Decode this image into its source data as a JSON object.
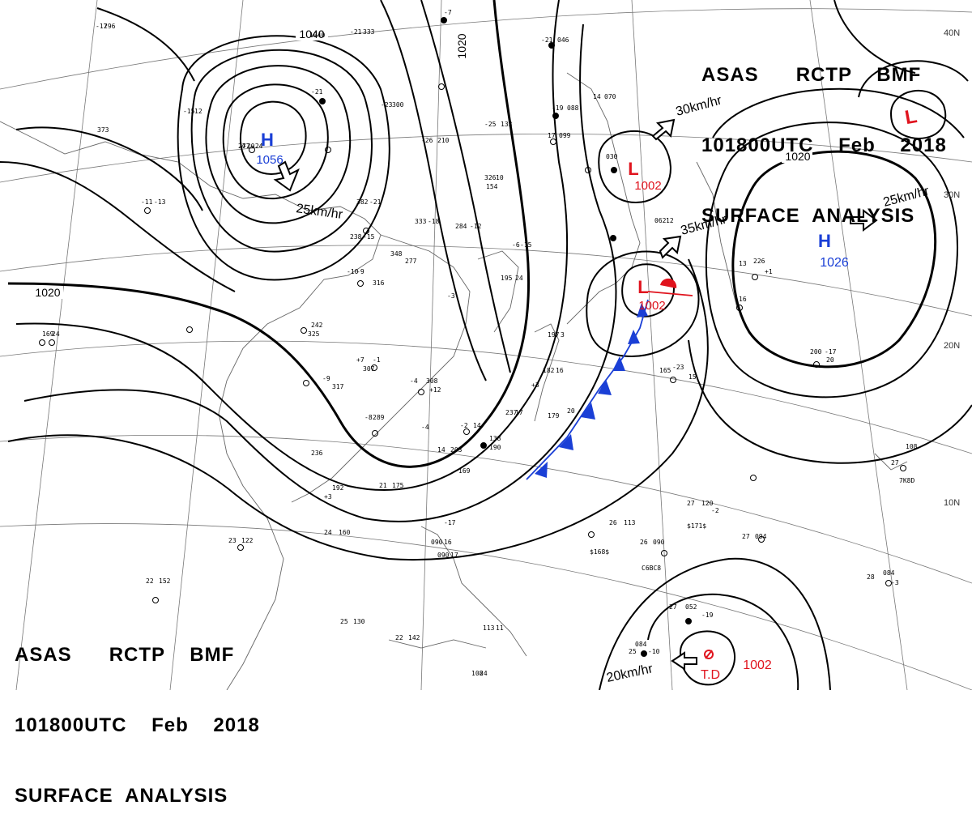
{
  "header_top_right": {
    "line1": "ASAS      RCTP    BMF",
    "line2": "101800UTC    Feb    2018",
    "line3": "SURFACE  ANALYSIS"
  },
  "header_bottom_left": {
    "line1": "ASAS      RCTP    BMF",
    "line2": "101800UTC    Feb    2018",
    "line3": "SURFACE  ANALYSIS"
  },
  "latitude_labels": [
    "40N",
    "30N",
    "20N",
    "10N"
  ],
  "isobar_labels": [
    "1040",
    "1020",
    "1020",
    "1020"
  ],
  "pressure_centers": [
    {
      "type_letter": "H",
      "value": "1056",
      "color": "#1a3fd6"
    },
    {
      "type_letter": "L",
      "value": "1002",
      "color": "#e0141e"
    },
    {
      "type_letter": "L",
      "value": "1002",
      "color": "#e0141e"
    },
    {
      "type_letter": "H",
      "value": "1026",
      "color": "#1a3fd6"
    },
    {
      "type_letter": "L",
      "value": "",
      "color": "#e0141e"
    }
  ],
  "tropical_depression": {
    "label": "T.D",
    "value": "1002",
    "color": "#e0141e"
  },
  "motion_labels": [
    "25km/hr",
    "30km/hr",
    "35km/hr",
    "25km/hr",
    "20km/hr"
  ],
  "station_values": [
    "-17",
    "296",
    "-21",
    "333",
    "1040",
    "-7",
    "-21",
    "046",
    "-21",
    "-23",
    "300",
    "-25",
    "133",
    "-19",
    "088",
    "14",
    "070",
    "-26",
    "210",
    "17",
    "099",
    "-15",
    "12",
    "373",
    "277",
    "-20",
    "4",
    "-24",
    "326",
    "10",
    "154",
    "-11",
    "-13",
    "382",
    "-21",
    "333",
    "-18",
    "284",
    "-12",
    "238",
    "-15",
    "348",
    "277",
    "-10",
    "-9",
    "316",
    "-6",
    "-15",
    "195",
    "24",
    "-3",
    "242",
    "325",
    "+7",
    "-1",
    "307",
    "-9",
    "317",
    "-4",
    "308",
    "+12",
    "-8",
    "289",
    "-4",
    "-2",
    "14",
    "237",
    "17",
    "179",
    "20",
    "138",
    "190",
    "+3",
    "14",
    "203",
    "169",
    "236",
    "21",
    "175",
    "192",
    "+3",
    "23",
    "122",
    "-17",
    "24",
    "160",
    "22",
    "152",
    "25",
    "130",
    "22",
    "142",
    "26",
    "113",
    "26",
    "090",
    "27",
    "094",
    "27",
    "120",
    "-2",
    "28",
    "084",
    "-3",
    "27",
    "108",
    "25",
    "084",
    "-10",
    "27",
    "052",
    "-19",
    "13",
    "226",
    "+1",
    "16",
    "200",
    "-17",
    "20",
    "165",
    "-23",
    "15",
    "169",
    "24",
    "108",
    "24",
    "113",
    "11",
    "062",
    "12",
    "090",
    "17",
    "090",
    "16",
    "182",
    "16",
    "197",
    "3",
    "030"
  ],
  "station_codes": [
    "$168$",
    "C6BC8",
    "$171$",
    "7K8D"
  ],
  "colors": {
    "high": "#1a3fd6",
    "low": "#e0141e",
    "isobar": "#000000",
    "front_cold": "#1a3fd6",
    "front_warm": "#e0141e",
    "coast": "#555555"
  }
}
